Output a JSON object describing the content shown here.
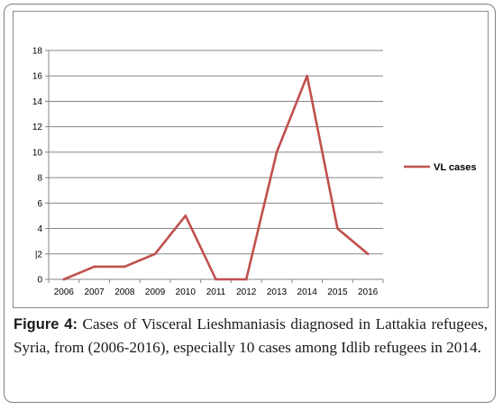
{
  "chart_data": {
    "type": "line",
    "x": [
      "2006",
      "2007",
      "2008",
      "2009",
      "2010",
      "2011",
      "2012",
      "2013",
      "2014",
      "2015",
      "2016"
    ],
    "series": [
      {
        "name": "VL cases",
        "values": [
          0,
          1,
          1,
          2,
          5,
          0,
          0,
          10,
          16,
          4,
          2
        ]
      }
    ],
    "ylim": [
      0,
      18
    ],
    "yticks": [
      "0",
      "|2",
      "4",
      "6",
      "8",
      "10",
      "12",
      "14",
      "16",
      "18"
    ],
    "grid": true,
    "legend_position": "right",
    "line_color": "#c0504d"
  },
  "caption": {
    "label": "Figure 4:",
    "text": " Cases of Visceral Lieshmaniasis diagnosed in Lattakia refugees, Syria, from (2006-2016), especially 10 cases among Idlib refugees in 2014."
  }
}
